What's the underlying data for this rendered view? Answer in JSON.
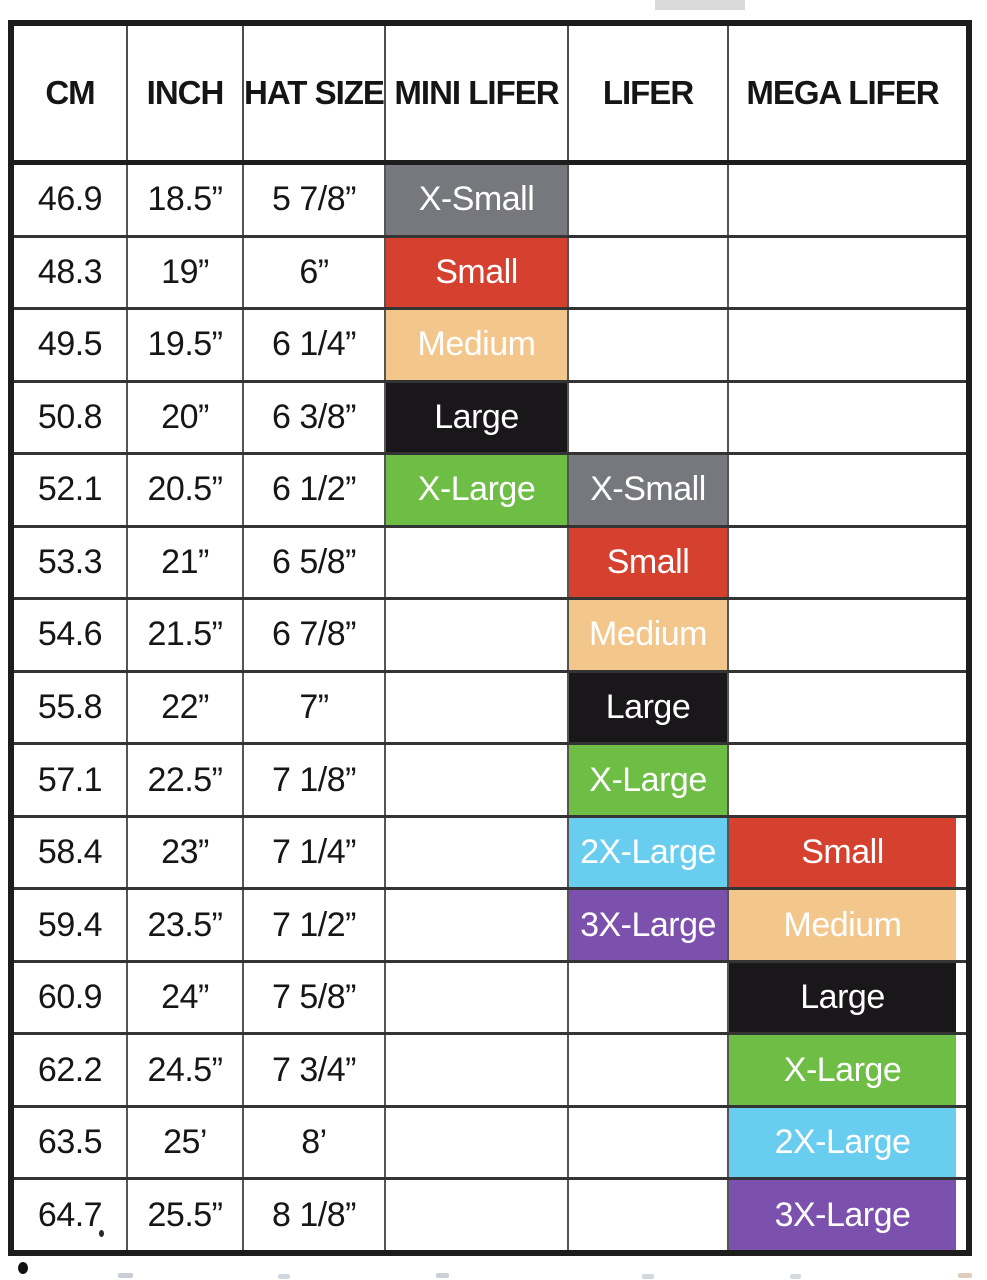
{
  "colors": {
    "gray": "#77787E",
    "red": "#D5402F",
    "tan": "#F3C68B",
    "black": "#1A171A",
    "green": "#6EBE46",
    "blue": "#68CDEF",
    "purple": "#7B51AD"
  },
  "table": {
    "headers": [
      "CM",
      "INCH",
      "HAT SIZE",
      "MINI LIFER",
      "LIFER",
      "MEGA LIFER"
    ],
    "rows": [
      {
        "cm": "46.9",
        "inch": "18.5”",
        "hat_size": "5 7/8”",
        "mini_lifer": {
          "label": "X-Small",
          "color": "gray"
        },
        "lifer": null,
        "mega_lifer": null
      },
      {
        "cm": "48.3",
        "inch": "19”",
        "hat_size": "6”",
        "mini_lifer": {
          "label": "Small",
          "color": "red"
        },
        "lifer": null,
        "mega_lifer": null
      },
      {
        "cm": "49.5",
        "inch": "19.5”",
        "hat_size": "6 1/4”",
        "mini_lifer": {
          "label": "Medium",
          "color": "tan"
        },
        "lifer": null,
        "mega_lifer": null
      },
      {
        "cm": "50.8",
        "inch": "20”",
        "hat_size": "6 3/8”",
        "mini_lifer": {
          "label": "Large",
          "color": "black"
        },
        "lifer": null,
        "mega_lifer": null
      },
      {
        "cm": "52.1",
        "inch": "20.5”",
        "hat_size": "6 1/2”",
        "mini_lifer": {
          "label": "X-Large",
          "color": "green"
        },
        "lifer": {
          "label": "X-Small",
          "color": "gray"
        },
        "mega_lifer": null
      },
      {
        "cm": "53.3",
        "inch": "21”",
        "hat_size": "6 5/8”",
        "mini_lifer": null,
        "lifer": {
          "label": "Small",
          "color": "red"
        },
        "mega_lifer": null
      },
      {
        "cm": "54.6",
        "inch": "21.5”",
        "hat_size": "6 7/8”",
        "mini_lifer": null,
        "lifer": {
          "label": "Medium",
          "color": "tan"
        },
        "mega_lifer": null
      },
      {
        "cm": "55.8",
        "inch": "22”",
        "hat_size": "7”",
        "mini_lifer": null,
        "lifer": {
          "label": "Large",
          "color": "black"
        },
        "mega_lifer": null
      },
      {
        "cm": "57.1",
        "inch": "22.5”",
        "hat_size": "7 1/8”",
        "mini_lifer": null,
        "lifer": {
          "label": "X-Large",
          "color": "green"
        },
        "mega_lifer": null
      },
      {
        "cm": "58.4",
        "inch": "23”",
        "hat_size": "7 1/4”",
        "mini_lifer": null,
        "lifer": {
          "label": "2X-Large",
          "color": "blue"
        },
        "mega_lifer": {
          "label": "Small",
          "color": "red"
        }
      },
      {
        "cm": "59.4",
        "inch": "23.5”",
        "hat_size": "7 1/2”",
        "mini_lifer": null,
        "lifer": {
          "label": "3X-Large",
          "color": "purple"
        },
        "mega_lifer": {
          "label": "Medium",
          "color": "tan"
        }
      },
      {
        "cm": "60.9",
        "inch": "24”",
        "hat_size": "7 5/8”",
        "mini_lifer": null,
        "lifer": null,
        "mega_lifer": {
          "label": "Large",
          "color": "black"
        }
      },
      {
        "cm": "62.2",
        "inch": "24.5”",
        "hat_size": "7 3/4”",
        "mini_lifer": null,
        "lifer": null,
        "mega_lifer": {
          "label": "X-Large",
          "color": "green"
        }
      },
      {
        "cm": "63.5",
        "inch": "25’",
        "hat_size": "8’",
        "mini_lifer": null,
        "lifer": null,
        "mega_lifer": {
          "label": "2X-Large",
          "color": "blue"
        }
      },
      {
        "cm": "64.7",
        "inch": "25.5”",
        "hat_size": "8 1/8”",
        "mini_lifer": null,
        "lifer": null,
        "mega_lifer": {
          "label": "3X-Large",
          "color": "purple"
        }
      }
    ]
  }
}
